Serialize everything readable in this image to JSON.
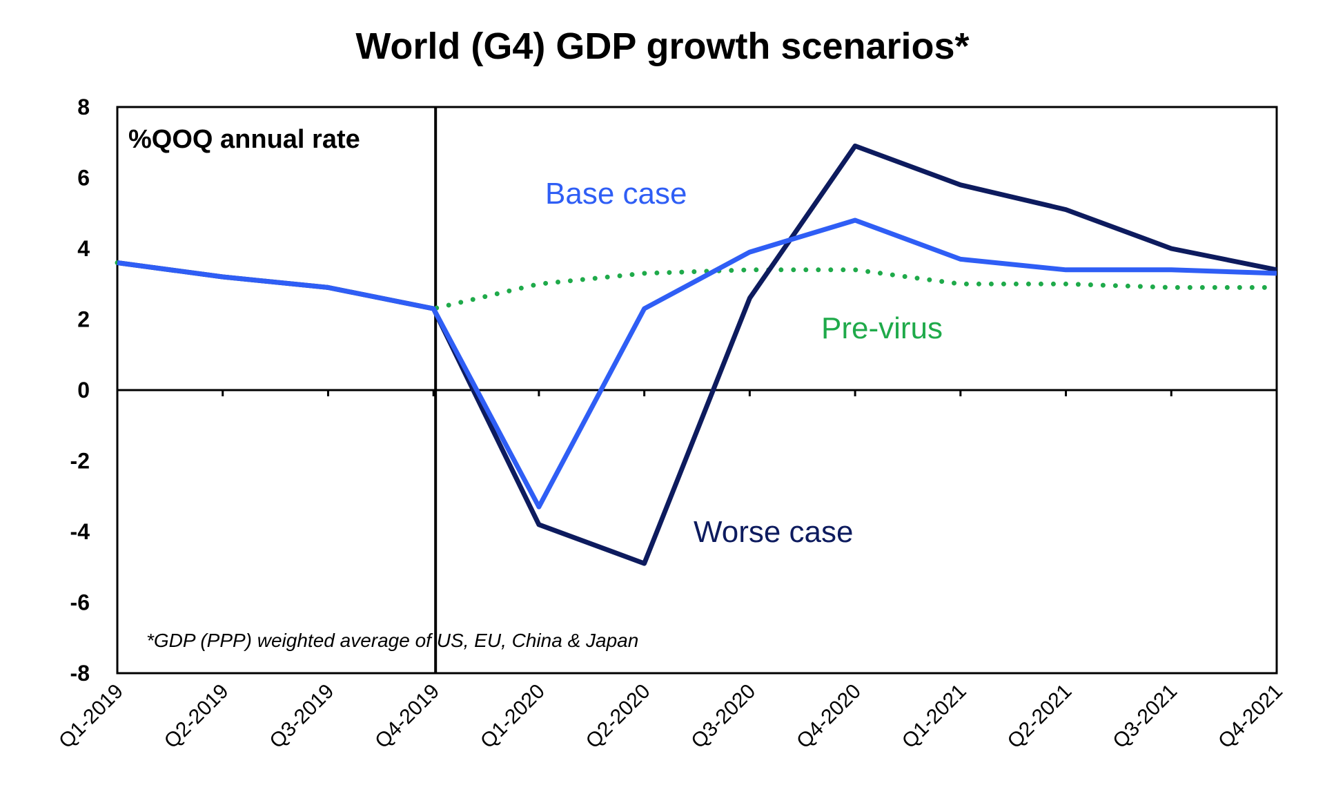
{
  "chart_data": {
    "type": "line",
    "title": "World (G4) GDP growth scenarios*",
    "unit_label": "%QOQ annual rate",
    "footnote": "*GDP (PPP) weighted average of US, EU, China & Japan",
    "categories": [
      "Q1-2019",
      "Q2-2019",
      "Q3-2019",
      "Q4-2019",
      "Q1-2020",
      "Q2-2020",
      "Q3-2020",
      "Q4-2020",
      "Q1-2021",
      "Q2-2021",
      "Q3-2021",
      "Q4-2021"
    ],
    "ylim": [
      -8,
      8
    ],
    "yticks": [
      "8",
      "6",
      "4",
      "2",
      "0",
      "-2",
      "-4",
      "-6",
      "-8"
    ],
    "divider_after_category": "Q4-2019",
    "series": [
      {
        "name": "Base case",
        "color": "#2f5ef5",
        "style": "solid",
        "values": [
          3.6,
          3.2,
          2.9,
          2.3,
          -3.3,
          2.3,
          3.9,
          4.8,
          3.7,
          3.4,
          3.4,
          3.3
        ]
      },
      {
        "name": "Worse case",
        "color": "#0d1b5e",
        "style": "solid",
        "values": [
          3.6,
          3.2,
          2.9,
          2.3,
          -3.8,
          -4.9,
          2.6,
          6.9,
          5.8,
          5.1,
          4.0,
          3.4
        ]
      },
      {
        "name": "Pre-virus",
        "color": "#1faa4a",
        "style": "dotted",
        "values": [
          3.6,
          3.2,
          2.9,
          2.3,
          3.0,
          3.3,
          3.4,
          3.4,
          3.0,
          3.0,
          2.9,
          2.9
        ]
      }
    ]
  }
}
